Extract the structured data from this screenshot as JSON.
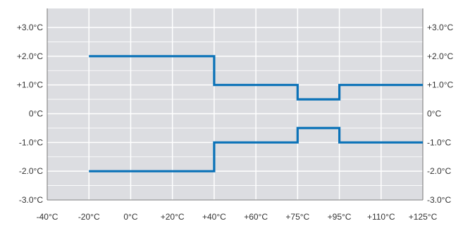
{
  "chart_data": {
    "type": "line",
    "title": "",
    "xlabel": "",
    "ylabel": "",
    "x_ticks": [
      {
        "value": -40,
        "label": "-40°C"
      },
      {
        "value": -20,
        "label": "-20°C"
      },
      {
        "value": 0,
        "label": "0°C"
      },
      {
        "value": 20,
        "label": "+20°C"
      },
      {
        "value": 40,
        "label": "+40°C"
      },
      {
        "value": 60,
        "label": "+60°C"
      },
      {
        "value": 75,
        "label": "+75°C"
      },
      {
        "value": 95,
        "label": "+95°C"
      },
      {
        "value": 110,
        "label": "+110°C"
      },
      {
        "value": 125,
        "label": "+125°C"
      }
    ],
    "y_ticks": [
      {
        "value": 3,
        "label": "+3.0°C"
      },
      {
        "value": 2,
        "label": "+2.0°C"
      },
      {
        "value": 1,
        "label": "+1.0°C"
      },
      {
        "value": 0,
        "label": "0°C"
      },
      {
        "value": -1,
        "label": "-1.0°C"
      },
      {
        "value": -2,
        "label": "-2.0°C"
      },
      {
        "value": -3,
        "label": "-3.0°C"
      }
    ],
    "ylim": [
      -3,
      3
    ],
    "grid": true,
    "right_axis": true,
    "series": [
      {
        "color": "#0a72b8",
        "points": [
          [
            -20,
            2
          ],
          [
            40,
            2
          ],
          [
            40,
            1
          ],
          [
            75,
            1
          ],
          [
            75,
            0.5
          ],
          [
            95,
            0.5
          ],
          [
            95,
            1
          ],
          [
            125,
            1
          ]
        ]
      },
      {
        "color": "#0a72b8",
        "points": [
          [
            -20,
            -2
          ],
          [
            40,
            -2
          ],
          [
            40,
            -1
          ],
          [
            75,
            -1
          ],
          [
            75,
            -0.5
          ],
          [
            95,
            -0.5
          ],
          [
            95,
            -1
          ],
          [
            125,
            -1
          ]
        ]
      }
    ]
  }
}
